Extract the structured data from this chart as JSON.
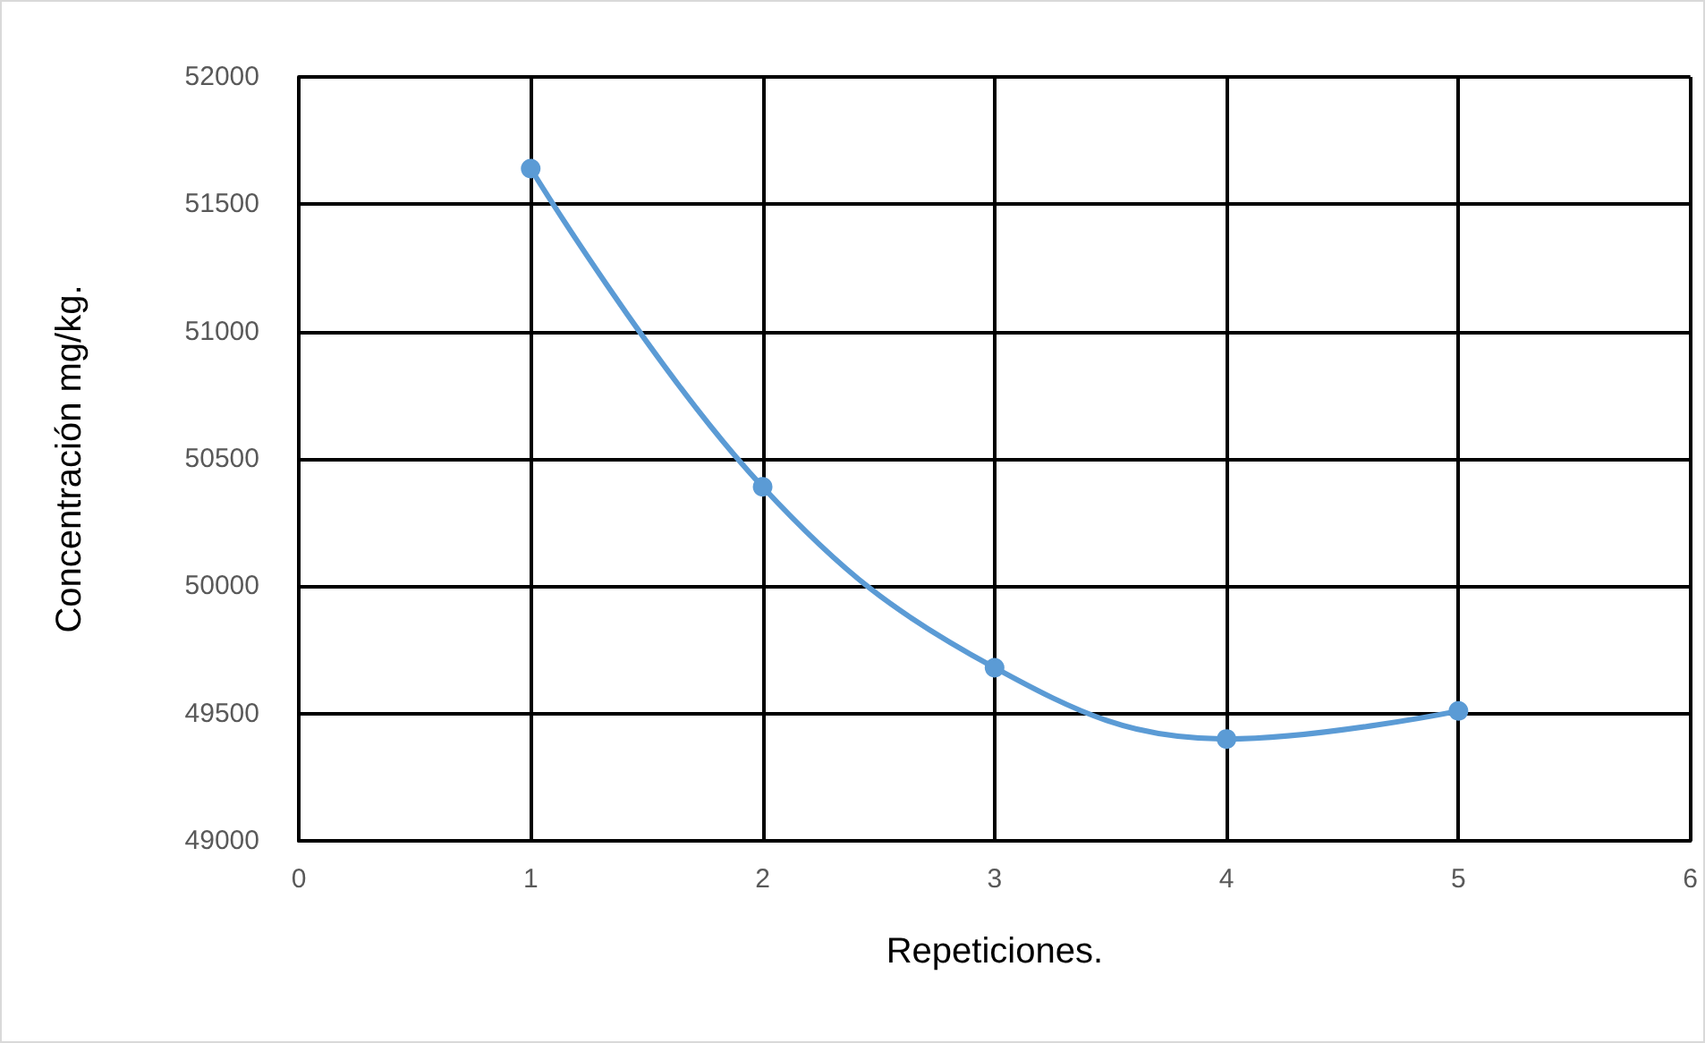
{
  "chart_data": {
    "type": "line",
    "xlabel": "Repeticiones.",
    "ylabel": "Concentración mg/kg.",
    "x": [
      1,
      2,
      3,
      4,
      5
    ],
    "series": [
      {
        "color": "#5b9bd5",
        "values": [
          51640,
          50390,
          49680,
          49400,
          49510
        ]
      }
    ],
    "xlim": [
      0,
      6
    ],
    "xticks": [
      0,
      1,
      2,
      3,
      4,
      5,
      6
    ],
    "ylim": [
      49000,
      52000
    ],
    "yticks": [
      49000,
      49500,
      50000,
      50500,
      51000,
      51500,
      52000
    ],
    "grid": true,
    "marker": "circle",
    "line_style": "solid"
  }
}
